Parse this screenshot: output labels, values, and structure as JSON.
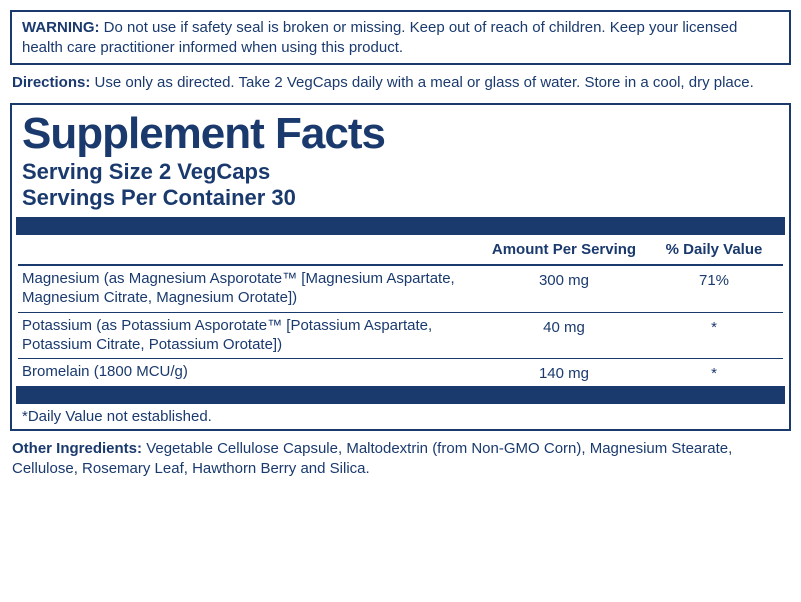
{
  "colors": {
    "primary": "#1a3a6e",
    "background": "#ffffff"
  },
  "warning": {
    "label": "WARNING:",
    "text": "Do not use if safety seal is broken or missing. Keep out of reach of children. Keep your licensed health care practitioner informed when using this product."
  },
  "directions": {
    "label": "Directions:",
    "text": "Use only as directed. Take 2 VegCaps daily with a meal or glass of water. Store in a cool, dry place."
  },
  "facts": {
    "title": "Supplement Facts",
    "serving_size_label": "Serving Size 2 VegCaps",
    "servings_per_container_label": "Servings Per Container 30",
    "headers": {
      "amount": "Amount Per Serving",
      "dv": "% Daily Value"
    },
    "rows": [
      {
        "name": "Magnesium (as Magnesium Asporotate™ [Magnesium Aspartate, Magnesium Citrate, Magnesium Orotate])",
        "amount": "300 mg",
        "dv": "71%"
      },
      {
        "name": "Potassium  (as Potassium Asporotate™ [Potassium Aspartate, Potassium Citrate, Potassium Orotate])",
        "amount": "40 mg",
        "dv": "*"
      },
      {
        "name": "Bromelain (1800 MCU/g)",
        "amount": "140 mg",
        "dv": "*"
      }
    ],
    "footnote": "*Daily Value not established."
  },
  "other_ingredients": {
    "label": "Other Ingredients:",
    "text": "Vegetable Cellulose Capsule, Maltodextrin (from Non-GMO Corn), Magnesium Stearate, Cellulose, Rosemary Leaf, Hawthorn Berry and Silica."
  }
}
